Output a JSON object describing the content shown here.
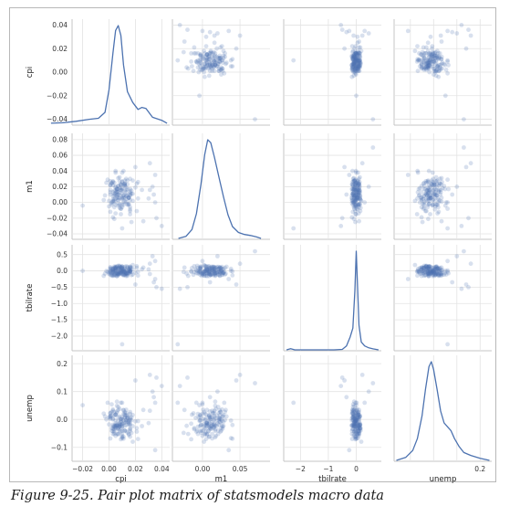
{
  "caption": "Figure 9-25. Pair plot matrix of statsmodels macro data",
  "colors": {
    "series": "#4c72b0",
    "grid": "#e3e3e3",
    "frame": "#c6c6c6"
  },
  "chart_data": {
    "type": "scatter",
    "variables": [
      "cpi",
      "m1",
      "tbilrate",
      "unemp"
    ],
    "grid": true,
    "axes": {
      "cpi": {
        "range": [
          -0.045,
          0.045
        ],
        "ticks": [
          -0.04,
          -0.02,
          0.0,
          0.02,
          0.04
        ],
        "tick_labels": [
          "−0.04",
          "−0.02",
          "0.00",
          "0.02",
          "0.04"
        ],
        "xrange": [
          -0.028,
          0.046
        ],
        "xticks": [
          -0.02,
          0.0,
          0.02,
          0.04
        ],
        "xtick_labels": [
          "−0.02",
          "0.00",
          "0.02",
          "0.04"
        ]
      },
      "m1": {
        "range": [
          -0.047,
          0.088
        ],
        "ticks": [
          -0.04,
          -0.02,
          0.0,
          0.02,
          0.04,
          0.06,
          0.08
        ],
        "tick_labels": [
          "−0.04",
          "−0.02",
          "0.00",
          "0.02",
          "0.04",
          "0.06",
          "0.08"
        ],
        "xrange": [
          -0.04,
          0.09
        ],
        "xticks": [
          0.0,
          0.05
        ],
        "xtick_labels": [
          "0.00",
          "0.05"
        ]
      },
      "tbilrate": {
        "range": [
          -2.45,
          0.8
        ],
        "ticks": [
          -2.0,
          -1.5,
          -1.0,
          -0.5,
          0.0,
          0.5
        ],
        "tick_labels": [
          "−2.0",
          "−1.5",
          "−1.0",
          "−0.5",
          "0.0",
          "0.5"
        ],
        "xrange": [
          -2.6,
          0.9
        ],
        "xticks": [
          -2,
          -1,
          0
        ],
        "xtick_labels": [
          "−2",
          "−1",
          "0"
        ]
      },
      "unemp": {
        "range": [
          -0.15,
          0.23
        ],
        "ticks": [
          -0.1,
          0.0,
          0.1,
          0.2
        ],
        "tick_labels": [
          "−0.1",
          "0.0",
          "0.1",
          "0.2"
        ],
        "xrange": [
          -0.17,
          0.25
        ],
        "xticks": [
          -0.1,
          0.0,
          0.1,
          0.2
        ],
        "xtick_labels": [
          "",
          "",
          "",
          "0.2"
        ]
      }
    },
    "diagonal_kde": {
      "cpi": {
        "x": [
          -0.044,
          -0.035,
          -0.025,
          -0.015,
          -0.008,
          -0.003,
          0.0,
          0.003,
          0.005,
          0.007,
          0.009,
          0.011,
          0.014,
          0.018,
          0.022,
          0.025,
          0.028,
          0.033,
          0.04,
          0.044
        ],
        "y": [
          0.01,
          0.015,
          0.03,
          0.05,
          0.06,
          0.12,
          0.35,
          0.72,
          0.95,
          1.0,
          0.9,
          0.6,
          0.33,
          0.22,
          0.15,
          0.17,
          0.16,
          0.07,
          0.04,
          0.01
        ]
      },
      "m1": {
        "x": [
          -0.032,
          -0.022,
          -0.014,
          -0.008,
          -0.002,
          0.003,
          0.007,
          0.011,
          0.016,
          0.022,
          0.028,
          0.034,
          0.04,
          0.048,
          0.056,
          0.064,
          0.072,
          0.078
        ],
        "y": [
          0.0,
          0.02,
          0.09,
          0.25,
          0.55,
          0.85,
          1.0,
          0.97,
          0.82,
          0.62,
          0.42,
          0.24,
          0.12,
          0.06,
          0.04,
          0.03,
          0.015,
          0.0
        ]
      },
      "tbilrate": {
        "x": [
          -2.5,
          -2.35,
          -2.2,
          -1.5,
          -0.8,
          -0.5,
          -0.35,
          -0.22,
          -0.12,
          -0.05,
          0.0,
          0.04,
          0.1,
          0.18,
          0.3,
          0.45,
          0.6,
          0.8
        ],
        "y": [
          0.0,
          0.012,
          0.0,
          0.0,
          0.0,
          0.005,
          0.04,
          0.13,
          0.22,
          0.6,
          1.0,
          0.7,
          0.25,
          0.08,
          0.04,
          0.02,
          0.01,
          0.0
        ]
      },
      "unemp": {
        "x": [
          -0.16,
          -0.12,
          -0.09,
          -0.07,
          -0.05,
          -0.035,
          -0.02,
          -0.01,
          0.0,
          0.015,
          0.03,
          0.045,
          0.06,
          0.075,
          0.09,
          0.11,
          0.13,
          0.16,
          0.2,
          0.24
        ],
        "y": [
          0.0,
          0.03,
          0.1,
          0.22,
          0.45,
          0.72,
          0.95,
          1.0,
          0.92,
          0.72,
          0.5,
          0.38,
          0.34,
          0.3,
          0.22,
          0.14,
          0.08,
          0.05,
          0.02,
          0.0
        ]
      }
    },
    "observations": {
      "cpi": [
        0.012,
        0.004,
        -0.02,
        0.017,
        0.003,
        0.002,
        0.02,
        0.031,
        0.01,
        0.016,
        0.012,
        0.008,
        0.009,
        0.003,
        0.009,
        0.005,
        0.012,
        0.011,
        0.013,
        0.013,
        0.006,
        0.014,
        0.007,
        0.001,
        0.011,
        0.002,
        0.005,
        0.016,
        0.008,
        0.009,
        0.005,
        -0.003,
        0.001,
        0.007,
        0.007,
        0.014,
        -0.002,
        0.016,
        0.003,
        0.01,
        0.016,
        0.014,
        0.005,
        0.008,
        0.009,
        0.01,
        0.006,
        0.002,
        0.016,
        0.005,
        0.014,
        0.015,
        0.001,
        0.014,
        0.016,
        0.016,
        0.013,
        0.005,
        0.0,
        0.004,
        0.025,
        0.008,
        0.001,
        0.013,
        0.005,
        -0.004,
        0.001,
        0.001,
        0.003,
        0.016,
        0.006,
        0.006,
        0.007,
        0.005,
        0.002,
        0.004,
        0.011,
        0.006,
        0.022,
        0.014,
        0.012,
        0.008,
        0.01,
        0.016,
        0.006,
        0.022,
        0.021,
        0.015,
        0.004,
        0.026,
        0.003,
        0.007,
        0.015,
        0.004,
        0.011,
        0.021,
        0.007,
        0.015,
        0.007,
        0.015,
        0.008,
        0.011,
        0.01,
        0.005,
        0.009,
        0.009,
        0.005,
        0.012,
        0.001,
        0.017,
        0.003,
        0.007,
        0.003,
        0.016,
        0.004,
        0.013,
        0.004,
        0.018,
        0.013,
        0.01,
        0.011,
        0.006,
        0.007,
        0.01,
        0.01,
        0.003,
        0.007,
        0.01,
        0.01,
        0.017,
        0.012,
        0.004,
        0.003,
        0.012,
        0.013,
        0.01,
        0.011,
        0.015,
        0.009,
        0.0,
        0.009,
        0.012,
        0.01,
        0.012,
        -0.001,
        0.008,
        0.008,
        0.016,
        0.005,
        0.006,
        0.002,
        0.008,
        0.013,
        0.018,
        0.03,
        0.035,
        0.036,
        0.04,
        0.034,
        0.033,
        0.035,
        0.018,
        -0.04,
        0.01,
        0.02,
        0.031
      ],
      "m1": [
        0.021,
        0.015,
        -0.004,
        0.011,
        -0.019,
        -0.003,
        0.019,
        0.016,
        0.015,
        -0.011,
        0.001,
        0.009,
        -0.008,
        0.013,
        0.022,
        0.04,
        0.028,
        0.04,
        0.03,
        0.004,
        0.013,
        0.023,
        -0.004,
        0.01,
        -0.0,
        -0.001,
        -0.003,
        0.012,
        0.018,
        0.023,
        0.015,
        0.009,
        0.013,
        0.003,
        0.006,
        -0.002,
        0.025,
        0.03,
        0.027,
        0.017,
        0.003,
        0.009,
        0.0,
        0.027,
        -0.008,
        0.006,
        0.017,
        0.024,
        -0.015,
        0.01,
        0.028,
        0.006,
        -0.012,
        0.017,
        -0.006,
        -0.009,
        0.016,
        0.005,
        -0.005,
        0.009,
        0.016,
        -0.002,
        0.016,
        0.009,
        0.038,
        0.003,
        0.022,
        0.022,
        0.022,
        0.017,
        0.006,
        0.014,
        0.021,
        0.02,
        0.025,
        0.004,
        0.009,
        0.017,
        0.005,
        -0.003,
        0.024,
        -0.007,
        0.026,
        0.009,
        0.017,
        0.026,
        0.024,
        -0.002,
        -0.006,
        -0.024,
        0.004,
        0.003,
        0.006,
        0.011,
        0.009,
        -0.011,
        0.031,
        -0.003,
        0.017,
        0.006,
        -0.003,
        0.006,
        0.011,
        -0.014,
        0.023,
        0.016,
        0.019,
        0.024,
        0.027,
        -0.025,
        0.001,
        0.021,
        0.026,
        0.014,
        -0.021,
        0.008,
        0.025,
        0.011,
        0.013,
        0.027,
        0.023,
        0.01,
        0.01,
        0.004,
        -0.006,
        0.008,
        0.013,
        0.005,
        -0.003,
        0.015,
        0.014,
        0.002,
        0.002,
        0.023,
        0.019,
        0.038,
        -0.003,
        0.006,
        -0.015,
        0.002,
        0.016,
        0.022,
        0.018,
        0.006,
        0.029,
        0.032,
        0.006,
        0.01,
        0.012,
        0.008,
        -0.0,
        0.012,
        0.001,
        0.028,
        0.005,
        0.0,
        -0.02,
        -0.03,
        0.01,
        0.02,
        0.035,
        0.002,
        0.07,
        -0.033,
        0.045,
        0.05
      ],
      "tbilrate": [
        0.123,
        -0.015,
        0.002,
        -0.131,
        -0.154,
        0.074,
        -0.057,
        -0.096,
        -0.021,
        -0.037,
        -0.02,
        0.089,
        0.016,
        0.009,
        -0.037,
        -0.135,
        -0.063,
        -0.013,
        -0.109,
        0.141,
        0.108,
        -0.153,
        -0.033,
        0.082,
        -0.101,
        -0.151,
        0.071,
        0.127,
        0.026,
        0.105,
        0.126,
        -0.083,
        0.01,
        -0.089,
        -0.087,
        0.096,
        -0.005,
        0.094,
        0.052,
        -0.015,
        -0.014,
        -0.094,
        -0.08,
        -0.069,
        -0.068,
        0.131,
        -0.063,
        -0.056,
        -0.007,
        0.035,
        -0.063,
        0.05,
        -0.119,
        -0.107,
        -0.003,
        0.045,
        0.013,
        0.079,
        -0.052,
        0.133,
        0.05,
        0.13,
        0.116,
        -0.158,
        -0.002,
        -0.153,
        -0.024,
        0.062,
        0.073,
        0.087,
        -0.163,
        0.007,
        0.052,
        -0.034,
        0.012,
        -0.004,
        0.033,
        -0.075,
        -0.144,
        0.128,
        0.071,
        0.156,
        0.123,
        -0.023,
        -0.155,
        -0.024,
        0.097,
        -0.068,
        0.096,
        0.103,
        0.04,
        0.158,
        -0.008,
        -0.125,
        -0.041,
        0.143,
        -0.086,
        0.008,
        -0.132,
        -0.057,
        -0.026,
        0.015,
        0.018,
        0.089,
        0.108,
        0.062,
        0.119,
        -0.023,
        -0.057,
        -0.033,
        -0.045,
        -0.117,
        -0.126,
        0.127,
        -0.08,
        -0.07,
        0.081,
        -0.114,
        -0.082,
        -0.111,
        -0.138,
        -0.1,
        0.08,
        0.005,
        -0.085,
        -0.021,
        0.075,
        0.136,
        0.085,
        0.093,
        -0.13,
        -0.14,
        -0.027,
        -0.02,
        -0.068,
        0.064,
        -0.118,
        0.043,
        -0.03,
        -0.093,
        -0.073,
        -0.109,
        0.088,
        0.028,
        -0.024,
        0.127,
        -0.074,
        -0.012,
        0.08,
        0.142,
        -0.111,
        -0.093,
        -0.057,
        0.054,
        0.046,
        0.3,
        -0.5,
        -0.55,
        -0.35,
        0.45,
        -0.25,
        0.18,
        0.6,
        -2.25,
        -0.42,
        0.22
      ],
      "unemp": [
        -0.04,
        -0.027,
        0.051,
        0.008,
        -0.052,
        0.014,
        -0.007,
        0.031,
        -0.016,
        -0.035,
        -0.04,
        -0.026,
        0.06,
        0.031,
        -0.003,
        -0.02,
        -0.023,
        -0.069,
        -0.002,
        -0.02,
        -0.052,
        0.004,
        -0.005,
        0.007,
        0.02,
        -0.041,
        0.017,
        -0.033,
        0.038,
        0.002,
        -0.03,
        0.011,
        -0.068,
        -0.053,
        -0.022,
        -0.047,
        0.0,
        0.027,
        -0.033,
        -0.064,
        -0.004,
        0.015,
        -0.059,
        -0.026,
        -0.044,
        -0.015,
        0.049,
        0.027,
        -0.015,
        -0.03,
        -0.008,
        -0.052,
        0.022,
        0.006,
        0.02,
        0.006,
        0.023,
        0.018,
        0.008,
        0.014,
        -0.024,
        -0.02,
        0.011,
        -0.004,
        -0.004,
        0.021,
        0.002,
        0.023,
        -0.019,
        -0.041,
        -0.021,
        0.024,
        -0.052,
        -0.014,
        -0.031,
        -0.046,
        -0.013,
        0.064,
        -0.07,
        0.009,
        0.026,
        -0.04,
        -0.023,
        -0.062,
        -0.022,
        -0.006,
        -0.044,
        -0.019,
        -0.052,
        0.034,
        0.0,
        -0.032,
        -0.014,
        -0.034,
        -0.062,
        -0.031,
        0.034,
        -0.004,
        -0.036,
        -0.009,
        -0.024,
        0.034,
        0.001,
        0.017,
        -0.009,
        -0.019,
        -0.024,
        -0.01,
        0.012,
        -0.048,
        0.003,
        0.045,
        0.036,
        -0.02,
        -0.023,
        -0.042,
        -0.04,
        -0.024,
        -0.01,
        0.01,
        0.033,
        0.029,
        -0.03,
        -0.051,
        -0.026,
        -0.042,
        0.008,
        -0.032,
        -0.041,
        -0.003,
        0.021,
        0.027,
        -0.025,
        0.015,
        0.014,
        -0.067,
        -0.003,
        -0.055,
        -0.071,
        -0.018,
        0.001,
        0.007,
        -0.059,
        0.007,
        0.06,
        0.011,
        -0.013,
        0.001,
        -0.024,
        -0.018,
        0.054,
        -0.017,
        0.035,
        0.016,
        -0.013,
        0.06,
        0.15,
        0.12,
        0.08,
        0.1,
        -0.11,
        -0.08,
        0.13,
        0.06,
        0.14,
        0.16
      ]
    }
  }
}
